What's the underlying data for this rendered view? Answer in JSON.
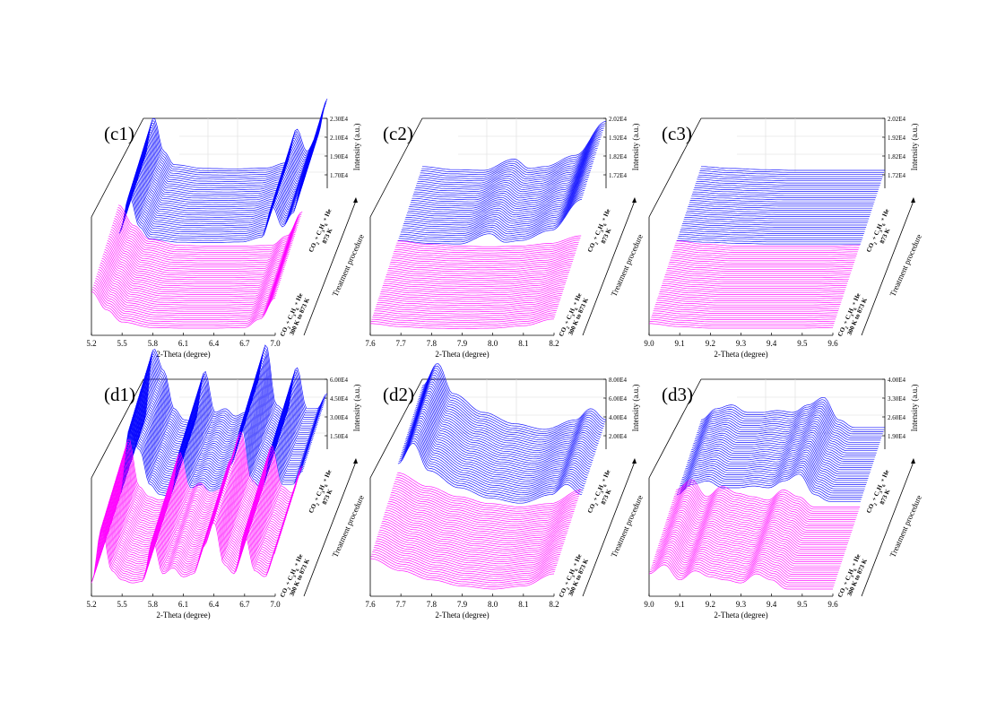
{
  "chart_data": [
    {
      "type": "line",
      "panel": "(c1)",
      "xlabel": "2-Theta (degree)",
      "zlabel": "Intensity (a.u.)",
      "ylabel": "Treatment procedure",
      "xlim": [
        5.2,
        7.0
      ],
      "x_ticks": [
        "5.2",
        "5.5",
        "5.8",
        "6.1",
        "6.4",
        "6.7",
        "7.0"
      ],
      "z_ticks": [
        "1.70E4",
        "1.90E4",
        "2.10E4",
        "2.30E4"
      ],
      "series": [
        {
          "label": [
            "CO",
            "2",
            " + C",
            "3",
            "H",
            "6",
            " + He"
          ],
          "condition": "300 K to 873 K",
          "color": "#ff00ff",
          "x": [
            5.2,
            5.35,
            5.5,
            5.8,
            6.1,
            6.4,
            6.7,
            6.85,
            7.0
          ],
          "y": [
            2.2,
            1.6,
            1.2,
            1.02,
            1.0,
            1.0,
            1.02,
            1.3,
            2.0
          ]
        },
        {
          "label": [
            "CO",
            "2",
            " + C",
            "3",
            "H",
            "6",
            " + He"
          ],
          "condition": "873 K",
          "color": "#0000ff",
          "x": [
            5.2,
            5.3,
            5.4,
            5.5,
            5.8,
            6.1,
            6.4,
            6.6,
            6.7,
            6.8,
            6.9,
            7.0
          ],
          "y": [
            1.3,
            2.4,
            1.5,
            1.15,
            1.05,
            1.04,
            1.06,
            1.2,
            2.1,
            1.5,
            1.9,
            2.9
          ]
        }
      ]
    },
    {
      "type": "line",
      "panel": "(c2)",
      "xlabel": "2-Theta (degree)",
      "zlabel": "Intensity (a.u.)",
      "ylabel": "Treatment procedure",
      "xlim": [
        7.6,
        8.2
      ],
      "x_ticks": [
        "7.6",
        "7.7",
        "7.8",
        "7.9",
        "8.0",
        "8.1",
        "8.2"
      ],
      "z_ticks": [
        "1.72E4",
        "1.82E4",
        "1.92E4",
        "2.02E4"
      ],
      "series": [
        {
          "label": [
            "CO",
            "2",
            " + C",
            "3",
            "H",
            "6",
            " + He"
          ],
          "condition": "300 K to 873 K",
          "color": "#ff00ff",
          "x": [
            7.6,
            7.7,
            7.8,
            7.9,
            8.0,
            8.1,
            8.2
          ],
          "y": [
            1.15,
            1.05,
            1.0,
            0.98,
            1.0,
            1.08,
            1.3
          ]
        },
        {
          "label": [
            "CO",
            "2",
            " + C",
            "3",
            "H",
            "6",
            " + He"
          ],
          "condition": "873 K",
          "color": "#0000ff",
          "x": [
            7.6,
            7.7,
            7.8,
            7.9,
            7.95,
            8.0,
            8.1,
            8.2
          ],
          "y": [
            1.1,
            1.02,
            1.0,
            1.3,
            1.05,
            1.1,
            1.4,
            2.3
          ]
        }
      ]
    },
    {
      "type": "line",
      "panel": "(c3)",
      "xlabel": "2-Theta (degree)",
      "zlabel": "Intensity (a.u.)",
      "ylabel": "Treatment procedure",
      "xlim": [
        9.0,
        9.6
      ],
      "x_ticks": [
        "9.0",
        "9.1",
        "9.2",
        "9.3",
        "9.4",
        "9.5",
        "9.6"
      ],
      "z_ticks": [
        "1.72E4",
        "1.82E4",
        "1.92E4",
        "2.02E4"
      ],
      "series": [
        {
          "label": [
            "CO",
            "2",
            " + C",
            "3",
            "H",
            "6",
            " + He"
          ],
          "condition": "300 K to 873 K",
          "color": "#ff00ff",
          "x": [
            9.0,
            9.1,
            9.2,
            9.3,
            9.4,
            9.5,
            9.6
          ],
          "y": [
            1.15,
            1.05,
            1.0,
            1.0,
            1.0,
            1.0,
            1.02
          ]
        },
        {
          "label": [
            "CO",
            "2",
            " + C",
            "3",
            "H",
            "6",
            " + He"
          ],
          "condition": "873 K",
          "color": "#0000ff",
          "x": [
            9.0,
            9.1,
            9.2,
            9.3,
            9.4,
            9.5,
            9.6
          ],
          "y": [
            1.1,
            1.05,
            1.02,
            1.0,
            1.0,
            1.0,
            1.0
          ]
        }
      ]
    },
    {
      "type": "line",
      "panel": "(d1)",
      "xlabel": "2-Theta (degree)",
      "zlabel": "Intensity (a.u.)",
      "ylabel": "Treatment procedure",
      "xlim": [
        5.2,
        7.0
      ],
      "x_ticks": [
        "5.2",
        "5.5",
        "5.8",
        "6.1",
        "6.4",
        "6.7",
        "7.0"
      ],
      "z_ticks": [
        "1.50E4",
        "3.00E4",
        "4.50E4",
        "6.00E4"
      ],
      "series": [
        {
          "label": [
            "CO",
            "2",
            " + C",
            "3",
            "H",
            "6",
            " + He"
          ],
          "condition": "300 K to 873 K",
          "color": "#ff00ff",
          "x": [
            5.2,
            5.3,
            5.4,
            5.5,
            5.6,
            5.7,
            5.8,
            5.9,
            6.0,
            6.1,
            6.2,
            6.3,
            6.4,
            6.5,
            6.6,
            6.7,
            6.8,
            6.9,
            7.0
          ],
          "y": [
            1.2,
            3.0,
            1.6,
            1.3,
            1.2,
            1.25,
            2.6,
            1.5,
            1.7,
            1.4,
            1.5,
            2.4,
            3.2,
            1.8,
            1.5,
            2.8,
            1.6,
            1.4,
            2.2
          ]
        },
        {
          "label": [
            "CO",
            "2",
            " + C",
            "3",
            "H",
            "6",
            " + He"
          ],
          "condition": "873 K",
          "color": "#0000ff",
          "x": [
            5.2,
            5.3,
            5.4,
            5.5,
            5.6,
            5.7,
            5.8,
            5.9,
            6.0,
            6.1,
            6.2,
            6.3,
            6.4,
            6.5,
            6.6,
            6.7,
            6.8,
            6.9,
            7.0
          ],
          "y": [
            1.2,
            3.2,
            2.6,
            1.6,
            1.3,
            1.25,
            2.6,
            1.5,
            1.6,
            1.4,
            1.5,
            2.2,
            3.3,
            1.7,
            1.5,
            2.7,
            1.6,
            1.6,
            2.0
          ]
        }
      ]
    },
    {
      "type": "line",
      "panel": "(d2)",
      "xlabel": "2-Theta (degree)",
      "zlabel": "Intensity (a.u.)",
      "ylabel": "Treatment procedure",
      "xlim": [
        7.6,
        8.2
      ],
      "x_ticks": [
        "7.6",
        "7.7",
        "7.8",
        "7.9",
        "8.0",
        "8.1",
        "8.2"
      ],
      "z_ticks": [
        "2.00E4",
        "4.00E4",
        "6.00E4",
        "8.00E4"
      ],
      "series": [
        {
          "label": [
            "CO",
            "2",
            " + C",
            "3",
            "H",
            "6",
            " + He"
          ],
          "condition": "300 K to 873 K",
          "color": "#ff00ff",
          "x": [
            7.6,
            7.7,
            7.8,
            7.9,
            8.0,
            8.1,
            8.2
          ],
          "y": [
            2.0,
            1.6,
            1.3,
            1.1,
            1.0,
            1.1,
            1.5
          ]
        },
        {
          "label": [
            "CO",
            "2",
            " + C",
            "3",
            "H",
            "6",
            " + He"
          ],
          "condition": "873 K",
          "color": "#0000ff",
          "x": [
            7.6,
            7.65,
            7.7,
            7.8,
            7.9,
            8.0,
            8.1,
            8.15,
            8.2
          ],
          "y": [
            2.2,
            2.8,
            2.0,
            1.5,
            1.2,
            1.05,
            1.3,
            1.6,
            1.3
          ]
        }
      ]
    },
    {
      "type": "line",
      "panel": "(d3)",
      "xlabel": "2-Theta (degree)",
      "zlabel": "Intensity (a.u.)",
      "ylabel": "Treatment procedure",
      "xlim": [
        9.0,
        9.6
      ],
      "x_ticks": [
        "9.0",
        "9.1",
        "9.2",
        "9.3",
        "9.4",
        "9.5",
        "9.6"
      ],
      "z_ticks": [
        "1.90E4",
        "2.60E4",
        "3.30E4",
        "4.00E4"
      ],
      "series": [
        {
          "label": [
            "CO",
            "2",
            " + C",
            "3",
            "H",
            "6",
            " + He"
          ],
          "condition": "300 K to 873 K",
          "color": "#ff00ff",
          "x": [
            9.0,
            9.05,
            9.1,
            9.15,
            9.2,
            9.25,
            9.3,
            9.35,
            9.4,
            9.45,
            9.5,
            9.55,
            9.6
          ],
          "y": [
            1.5,
            1.8,
            1.3,
            1.6,
            1.4,
            1.3,
            1.2,
            1.5,
            1.3,
            1.0,
            1.0,
            1.0,
            1.0
          ]
        },
        {
          "label": [
            "CO",
            "2",
            " + C",
            "3",
            "H",
            "6",
            " + He"
          ],
          "condition": "873 K",
          "color": "#0000ff",
          "x": [
            9.0,
            9.05,
            9.1,
            9.15,
            9.2,
            9.25,
            9.3,
            9.35,
            9.4,
            9.45,
            9.5,
            9.55,
            9.6
          ],
          "y": [
            1.3,
            1.6,
            1.7,
            1.5,
            1.5,
            1.55,
            1.5,
            1.7,
            1.9,
            1.3,
            1.1,
            1.1,
            1.1
          ]
        }
      ]
    }
  ]
}
